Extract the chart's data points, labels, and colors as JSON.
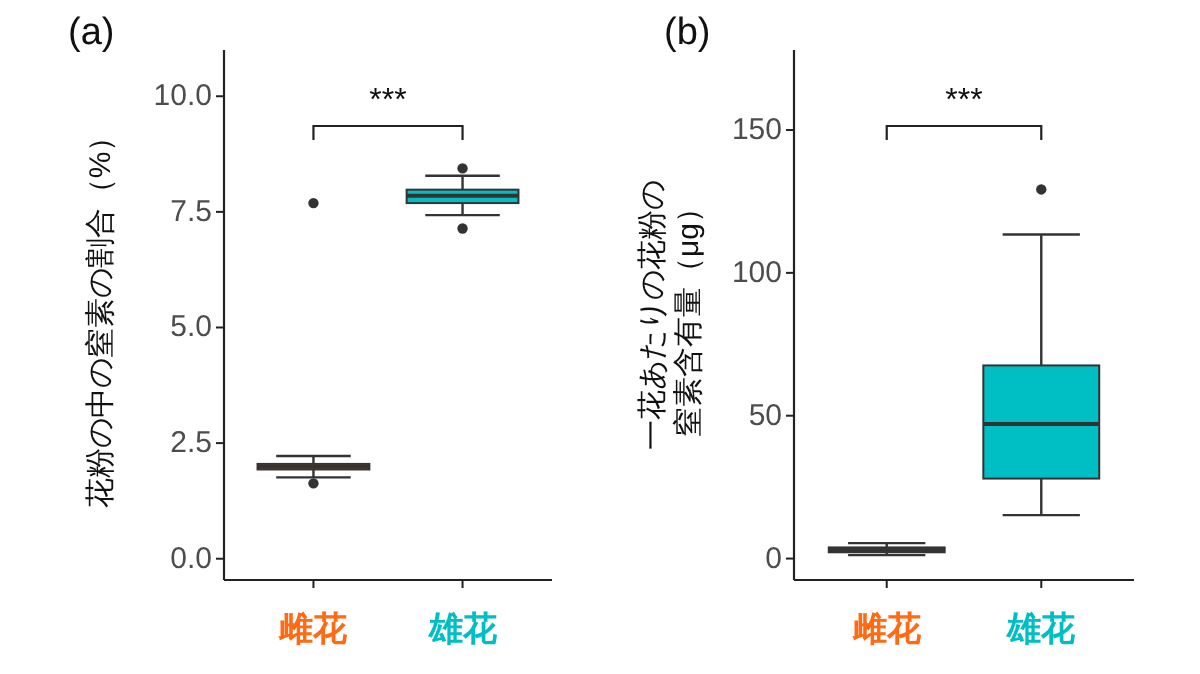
{
  "chart_data": [
    {
      "type": "box",
      "title": "(a)",
      "ylabel": "花粉の中の窒素の割合（%）",
      "categories": [
        "雌花",
        "雄花"
      ],
      "colors": [
        "#ff6a13",
        "#00bfc4"
      ],
      "boxes": [
        {
          "low": 1.76,
          "q1": 1.93,
          "median": 1.99,
          "q3": 2.05,
          "high": 2.22,
          "outliers": [
            7.69,
            1.63
          ]
        },
        {
          "low": 7.43,
          "q1": 7.69,
          "median": 7.85,
          "q3": 7.98,
          "high": 8.28,
          "outliers": [
            8.44,
            7.14
          ]
        }
      ],
      "ylim": [
        -0.46,
        11.0
      ],
      "yticks": [
        {
          "value": 0,
          "label": "0.0"
        },
        2.5,
        {
          "value": 5,
          "label": "5.0"
        },
        7.5,
        {
          "value": 10,
          "label": "10.0"
        }
      ],
      "grid": false,
      "annotations": [
        "***"
      ]
    },
    {
      "type": "box",
      "title": "(b)",
      "ylabel": "一花あたりの花粉の窒素含有量（μg）",
      "categories": [
        "雌花",
        "雄花"
      ],
      "colors": [
        "#ff6a13",
        "#00bfc4"
      ],
      "boxes": [
        {
          "low": 1.2,
          "q1": 2.2,
          "median": 3.0,
          "q3": 3.9,
          "high": 5.4
        },
        {
          "low": 15.2,
          "q1": 28,
          "median": 47.1,
          "q3": 67.6,
          "high": 113.4,
          "outliers": [
            129.2
          ]
        }
      ],
      "ylim": [
        -7.5,
        178
      ],
      "yticks": [
        0,
        50,
        100,
        150
      ],
      "grid": false,
      "annotations": [
        "***"
      ]
    }
  ]
}
